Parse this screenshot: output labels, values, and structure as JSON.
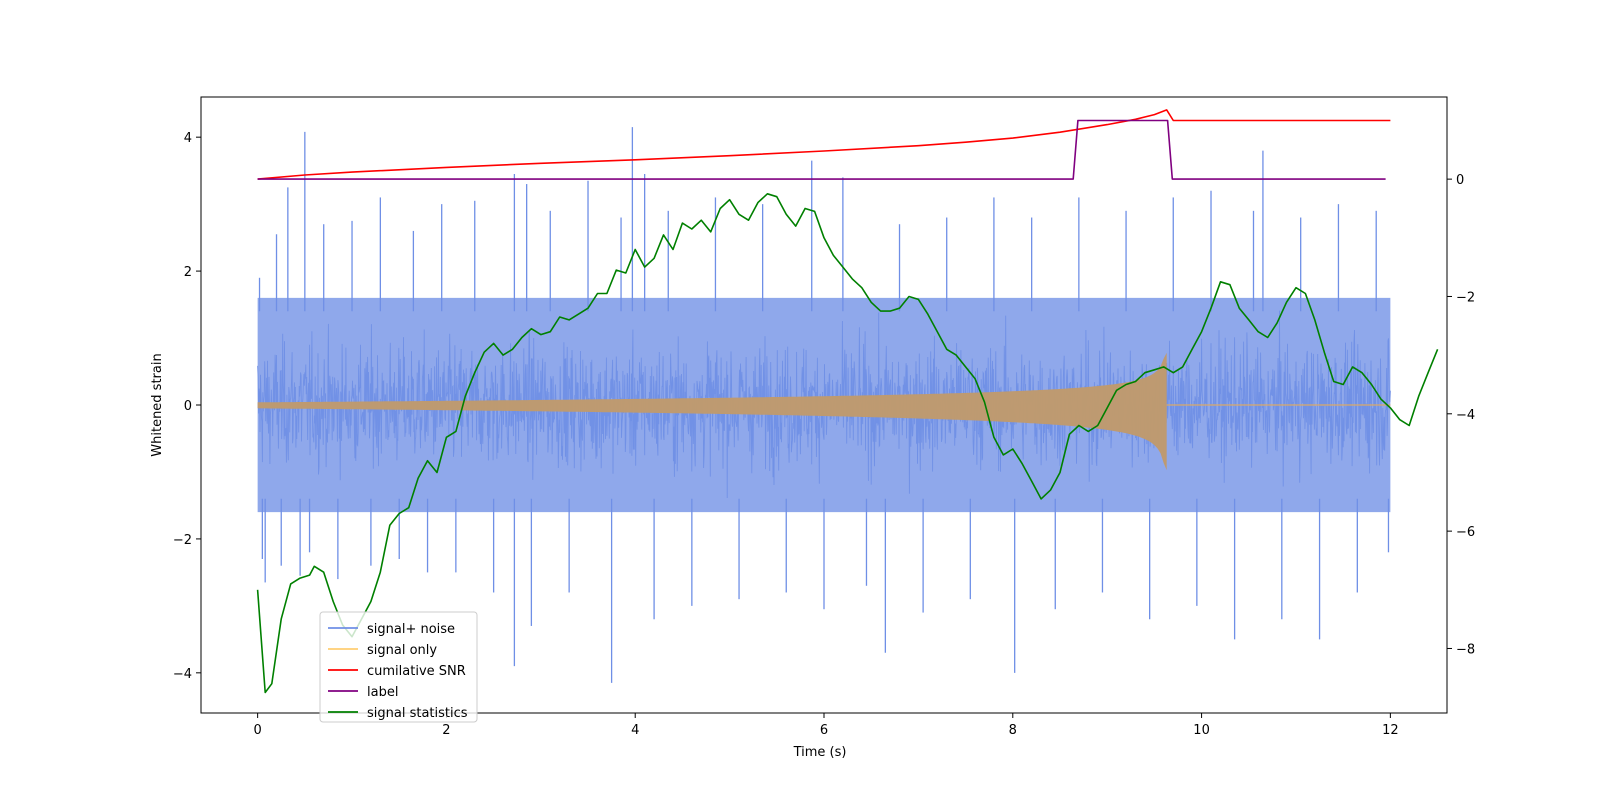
{
  "chart_data": {
    "type": "line",
    "title": "",
    "xlabel": "Time (s)",
    "ylabel": "Whitened strain",
    "y2label": "",
    "xlim": [
      -0.6,
      12.6
    ],
    "ylim": [
      -4.6,
      4.6
    ],
    "y2lim": [
      -9.1,
      1.4
    ],
    "x_ticks": [
      0,
      2,
      4,
      6,
      8,
      10,
      12
    ],
    "y_ticks": [
      -4,
      -2,
      0,
      2,
      4
    ],
    "y2_ticks": [
      -8,
      -6,
      -4,
      -2,
      0
    ],
    "grid": false,
    "legend_position": "lower-left",
    "noise_band": {
      "t_start": 0,
      "t_end": 12,
      "typical_low": -1.6,
      "typical_high": 1.6
    },
    "noise_spikes": [
      {
        "t": 0.02,
        "v": 1.9
      },
      {
        "t": 0.05,
        "v": -2.3
      },
      {
        "t": 0.08,
        "v": -2.65
      },
      {
        "t": 0.2,
        "v": 2.55
      },
      {
        "t": 0.25,
        "v": -2.4
      },
      {
        "t": 0.32,
        "v": 3.25
      },
      {
        "t": 0.45,
        "v": -2.55
      },
      {
        "t": 0.5,
        "v": 4.08
      },
      {
        "t": 0.55,
        "v": -2.2
      },
      {
        "t": 0.7,
        "v": 2.7
      },
      {
        "t": 0.85,
        "v": -2.6
      },
      {
        "t": 1.0,
        "v": 2.75
      },
      {
        "t": 1.2,
        "v": -2.4
      },
      {
        "t": 1.3,
        "v": 3.1
      },
      {
        "t": 1.5,
        "v": -2.3
      },
      {
        "t": 1.65,
        "v": 2.6
      },
      {
        "t": 1.8,
        "v": -2.5
      },
      {
        "t": 1.95,
        "v": 3.0
      },
      {
        "t": 2.1,
        "v": -2.5
      },
      {
        "t": 2.3,
        "v": 3.05
      },
      {
        "t": 2.5,
        "v": -2.8
      },
      {
        "t": 2.72,
        "v": 3.45
      },
      {
        "t": 2.72,
        "v": -3.9
      },
      {
        "t": 2.85,
        "v": 3.3
      },
      {
        "t": 2.9,
        "v": -3.3
      },
      {
        "t": 3.1,
        "v": 2.9
      },
      {
        "t": 3.3,
        "v": -2.8
      },
      {
        "t": 3.5,
        "v": 3.35
      },
      {
        "t": 3.75,
        "v": -4.15
      },
      {
        "t": 3.85,
        "v": 2.8
      },
      {
        "t": 3.97,
        "v": 4.15
      },
      {
        "t": 4.1,
        "v": 3.45
      },
      {
        "t": 4.2,
        "v": -3.2
      },
      {
        "t": 4.35,
        "v": 2.9
      },
      {
        "t": 4.6,
        "v": -3.0
      },
      {
        "t": 4.85,
        "v": 3.1
      },
      {
        "t": 5.1,
        "v": -2.9
      },
      {
        "t": 5.35,
        "v": 3.0
      },
      {
        "t": 5.6,
        "v": -2.8
      },
      {
        "t": 5.87,
        "v": 3.65
      },
      {
        "t": 6.0,
        "v": -3.05
      },
      {
        "t": 6.2,
        "v": 3.4
      },
      {
        "t": 6.45,
        "v": -2.7
      },
      {
        "t": 6.65,
        "v": -3.7
      },
      {
        "t": 6.8,
        "v": 2.7
      },
      {
        "t": 7.05,
        "v": -3.1
      },
      {
        "t": 7.3,
        "v": 2.8
      },
      {
        "t": 7.55,
        "v": -2.9
      },
      {
        "t": 7.8,
        "v": 3.1
      },
      {
        "t": 8.02,
        "v": -4.0
      },
      {
        "t": 8.2,
        "v": 2.8
      },
      {
        "t": 8.45,
        "v": -3.05
      },
      {
        "t": 8.7,
        "v": 3.1
      },
      {
        "t": 8.95,
        "v": -2.8
      },
      {
        "t": 9.2,
        "v": 2.9
      },
      {
        "t": 9.45,
        "v": -3.2
      },
      {
        "t": 9.7,
        "v": 3.1
      },
      {
        "t": 9.95,
        "v": -3.0
      },
      {
        "t": 10.1,
        "v": 3.2
      },
      {
        "t": 10.35,
        "v": -3.5
      },
      {
        "t": 10.55,
        "v": 2.9
      },
      {
        "t": 10.65,
        "v": 3.8
      },
      {
        "t": 10.85,
        "v": -3.2
      },
      {
        "t": 11.05,
        "v": 2.8
      },
      {
        "t": 11.25,
        "v": -3.5
      },
      {
        "t": 11.45,
        "v": 3.0
      },
      {
        "t": 11.65,
        "v": -2.8
      },
      {
        "t": 11.85,
        "v": 2.9
      },
      {
        "t": 11.98,
        "v": -2.2
      }
    ],
    "series": [
      {
        "name": "signal+ noise",
        "color": "#6f8fe6",
        "axis": "left"
      },
      {
        "name": "signal only",
        "color": "#ffa500",
        "axis": "left",
        "envelope": {
          "t_start": 0,
          "t_merge": 9.63,
          "t_end": 12,
          "amp_start": 0.04,
          "amp_peak": 0.78
        }
      },
      {
        "name": "cumilative SNR",
        "color": "#ff0000",
        "axis": "right",
        "points": [
          [
            0,
            0.0
          ],
          [
            0.5,
            0.07
          ],
          [
            1,
            0.12
          ],
          [
            2,
            0.2
          ],
          [
            3,
            0.27
          ],
          [
            4,
            0.33
          ],
          [
            5,
            0.4
          ],
          [
            6,
            0.48
          ],
          [
            7,
            0.57
          ],
          [
            7.5,
            0.63
          ],
          [
            8,
            0.7
          ],
          [
            8.5,
            0.8
          ],
          [
            9,
            0.93
          ],
          [
            9.3,
            1.02
          ],
          [
            9.5,
            1.1
          ],
          [
            9.63,
            1.18
          ],
          [
            9.7,
            1.0
          ],
          [
            10,
            1.0
          ],
          [
            12,
            1.0
          ]
        ]
      },
      {
        "name": "label",
        "color": "#800080",
        "axis": "right",
        "points": [
          [
            0,
            0
          ],
          [
            8.64,
            0
          ],
          [
            8.69,
            1.0
          ],
          [
            9.64,
            1.0
          ],
          [
            9.69,
            0
          ],
          [
            11.95,
            0
          ]
        ]
      },
      {
        "name": "signal statistics",
        "color": "#008000",
        "axis": "right",
        "points": [
          [
            0,
            -7.0
          ],
          [
            0.08,
            -8.75
          ],
          [
            0.15,
            -8.6
          ],
          [
            0.25,
            -7.5
          ],
          [
            0.35,
            -6.9
          ],
          [
            0.45,
            -6.8
          ],
          [
            0.55,
            -6.75
          ],
          [
            0.6,
            -6.6
          ],
          [
            0.7,
            -6.7
          ],
          [
            0.8,
            -7.2
          ],
          [
            0.9,
            -7.6
          ],
          [
            1.0,
            -7.8
          ],
          [
            1.1,
            -7.5
          ],
          [
            1.2,
            -7.2
          ],
          [
            1.3,
            -6.7
          ],
          [
            1.4,
            -5.9
          ],
          [
            1.5,
            -5.7
          ],
          [
            1.6,
            -5.6
          ],
          [
            1.7,
            -5.1
          ],
          [
            1.8,
            -4.8
          ],
          [
            1.9,
            -5.0
          ],
          [
            2.0,
            -4.4
          ],
          [
            2.1,
            -4.3
          ],
          [
            2.2,
            -3.7
          ],
          [
            2.3,
            -3.3
          ],
          [
            2.4,
            -2.95
          ],
          [
            2.5,
            -2.8
          ],
          [
            2.6,
            -3.0
          ],
          [
            2.7,
            -2.9
          ],
          [
            2.8,
            -2.7
          ],
          [
            2.9,
            -2.55
          ],
          [
            3.0,
            -2.65
          ],
          [
            3.1,
            -2.6
          ],
          [
            3.2,
            -2.35
          ],
          [
            3.3,
            -2.4
          ],
          [
            3.4,
            -2.3
          ],
          [
            3.5,
            -2.2
          ],
          [
            3.6,
            -1.95
          ],
          [
            3.7,
            -1.95
          ],
          [
            3.8,
            -1.55
          ],
          [
            3.9,
            -1.6
          ],
          [
            4.0,
            -1.2
          ],
          [
            4.1,
            -1.5
          ],
          [
            4.2,
            -1.35
          ],
          [
            4.3,
            -0.95
          ],
          [
            4.4,
            -1.2
          ],
          [
            4.5,
            -0.75
          ],
          [
            4.6,
            -0.85
          ],
          [
            4.7,
            -0.7
          ],
          [
            4.8,
            -0.9
          ],
          [
            4.9,
            -0.5
          ],
          [
            5.0,
            -0.35
          ],
          [
            5.1,
            -0.6
          ],
          [
            5.2,
            -0.7
          ],
          [
            5.3,
            -0.4
          ],
          [
            5.4,
            -0.25
          ],
          [
            5.5,
            -0.3
          ],
          [
            5.6,
            -0.6
          ],
          [
            5.7,
            -0.8
          ],
          [
            5.8,
            -0.5
          ],
          [
            5.9,
            -0.55
          ],
          [
            6.0,
            -1.0
          ],
          [
            6.1,
            -1.3
          ],
          [
            6.2,
            -1.5
          ],
          [
            6.3,
            -1.7
          ],
          [
            6.4,
            -1.85
          ],
          [
            6.5,
            -2.1
          ],
          [
            6.6,
            -2.25
          ],
          [
            6.7,
            -2.25
          ],
          [
            6.8,
            -2.2
          ],
          [
            6.9,
            -2.0
          ],
          [
            7.0,
            -2.05
          ],
          [
            7.1,
            -2.3
          ],
          [
            7.2,
            -2.6
          ],
          [
            7.3,
            -2.9
          ],
          [
            7.4,
            -3.0
          ],
          [
            7.5,
            -3.2
          ],
          [
            7.6,
            -3.4
          ],
          [
            7.7,
            -3.8
          ],
          [
            7.8,
            -4.4
          ],
          [
            7.9,
            -4.7
          ],
          [
            8.0,
            -4.6
          ],
          [
            8.1,
            -4.85
          ],
          [
            8.2,
            -5.15
          ],
          [
            8.3,
            -5.45
          ],
          [
            8.4,
            -5.3
          ],
          [
            8.5,
            -5.0
          ],
          [
            8.6,
            -4.35
          ],
          [
            8.7,
            -4.2
          ],
          [
            8.8,
            -4.3
          ],
          [
            8.9,
            -4.2
          ],
          [
            9.0,
            -3.9
          ],
          [
            9.1,
            -3.6
          ],
          [
            9.2,
            -3.5
          ],
          [
            9.3,
            -3.45
          ],
          [
            9.4,
            -3.3
          ],
          [
            9.5,
            -3.25
          ],
          [
            9.6,
            -3.2
          ],
          [
            9.7,
            -3.3
          ],
          [
            9.8,
            -3.2
          ],
          [
            9.9,
            -2.9
          ],
          [
            10.0,
            -2.6
          ],
          [
            10.1,
            -2.2
          ],
          [
            10.2,
            -1.75
          ],
          [
            10.3,
            -1.8
          ],
          [
            10.4,
            -2.2
          ],
          [
            10.5,
            -2.4
          ],
          [
            10.6,
            -2.6
          ],
          [
            10.7,
            -2.7
          ],
          [
            10.8,
            -2.45
          ],
          [
            10.9,
            -2.1
          ],
          [
            11.0,
            -1.85
          ],
          [
            11.1,
            -1.95
          ],
          [
            11.2,
            -2.4
          ],
          [
            11.3,
            -2.95
          ],
          [
            11.4,
            -3.45
          ],
          [
            11.5,
            -3.5
          ],
          [
            11.6,
            -3.2
          ],
          [
            11.7,
            -3.3
          ],
          [
            11.8,
            -3.5
          ],
          [
            11.9,
            -3.75
          ],
          [
            12.0,
            -3.9
          ],
          [
            12.1,
            -4.1
          ],
          [
            12.2,
            -4.2
          ],
          [
            12.3,
            -3.7
          ],
          [
            12.4,
            -3.3
          ],
          [
            12.5,
            -2.9
          ]
        ]
      }
    ]
  }
}
